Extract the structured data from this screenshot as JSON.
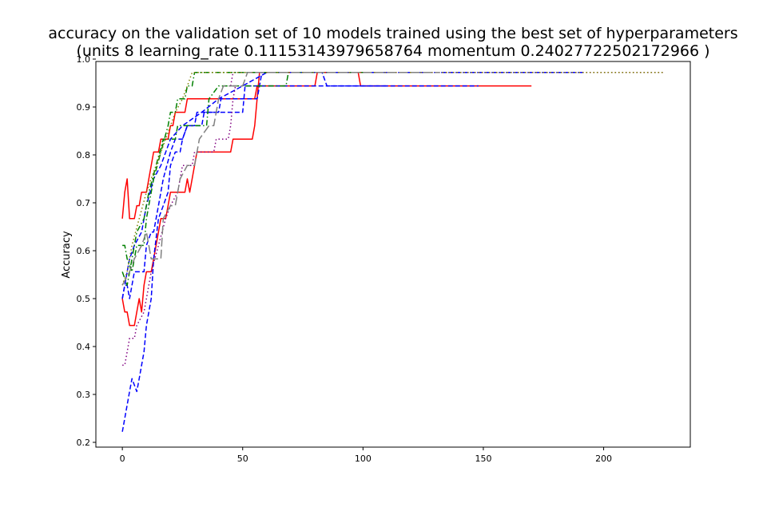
{
  "chart_data": {
    "type": "line",
    "title_lines": [
      "accuracy on the validation set of 10 models trained using the best set of hyperparameters",
      "(units 8 learning_rate 0.11153143979658764 momentum 0.24027722502172966 )"
    ],
    "xlabel": "",
    "ylabel": "Accuracy",
    "xlim": [
      -11,
      236
    ],
    "ylim": [
      0.19,
      0.995
    ],
    "xticks": [
      0,
      50,
      100,
      150,
      200
    ],
    "yticks": [
      0.2,
      0.3,
      0.4,
      0.5,
      0.6,
      0.7,
      0.8,
      0.9,
      1.0
    ],
    "ytick_labels": [
      "0.2",
      "0.3",
      "0.4",
      "0.5",
      "0.6",
      "0.7",
      "0.8",
      "0.9",
      "1.0"
    ],
    "grid": false,
    "series": [
      {
        "color": "#ff0000",
        "style": "solid",
        "points": [
          [
            0,
            0.667
          ],
          [
            1,
            0.722
          ],
          [
            2,
            0.75
          ],
          [
            3,
            0.667
          ],
          [
            5,
            0.667
          ],
          [
            6,
            0.694
          ],
          [
            7,
            0.694
          ],
          [
            8,
            0.722
          ],
          [
            10,
            0.722
          ],
          [
            11,
            0.75
          ],
          [
            13,
            0.806
          ],
          [
            15,
            0.806
          ],
          [
            16,
            0.833
          ],
          [
            19,
            0.833
          ],
          [
            20,
            0.861
          ],
          [
            21,
            0.861
          ],
          [
            22,
            0.889
          ],
          [
            23,
            0.889
          ],
          [
            26,
            0.889
          ],
          [
            27,
            0.917
          ],
          [
            55,
            0.917
          ],
          [
            56,
            0.944
          ],
          [
            80,
            0.944
          ],
          [
            81,
            0.972
          ],
          [
            98,
            0.972
          ],
          [
            99,
            0.944
          ],
          [
            170,
            0.944
          ]
        ]
      },
      {
        "color": "#ff0000",
        "style": "solid",
        "points": [
          [
            0,
            0.5
          ],
          [
            1,
            0.472
          ],
          [
            2,
            0.472
          ],
          [
            3,
            0.444
          ],
          [
            5,
            0.444
          ],
          [
            6,
            0.472
          ],
          [
            7,
            0.5
          ],
          [
            8,
            0.472
          ],
          [
            9,
            0.528
          ],
          [
            10,
            0.556
          ],
          [
            12,
            0.556
          ],
          [
            13,
            0.583
          ],
          [
            15,
            0.639
          ],
          [
            16,
            0.667
          ],
          [
            18,
            0.667
          ],
          [
            19,
            0.694
          ],
          [
            20,
            0.722
          ],
          [
            26,
            0.722
          ],
          [
            27,
            0.75
          ],
          [
            28,
            0.722
          ],
          [
            29,
            0.75
          ],
          [
            30,
            0.778
          ],
          [
            31,
            0.806
          ],
          [
            45,
            0.806
          ],
          [
            46,
            0.833
          ],
          [
            54,
            0.833
          ],
          [
            55,
            0.861
          ],
          [
            56,
            0.917
          ],
          [
            57,
            0.972
          ],
          [
            100,
            0.972
          ]
        ]
      },
      {
        "color": "#0000ff",
        "style": "dashed",
        "points": [
          [
            0,
            0.222
          ],
          [
            2,
            0.278
          ],
          [
            3,
            0.306
          ],
          [
            4,
            0.333
          ],
          [
            6,
            0.306
          ],
          [
            7,
            0.333
          ],
          [
            9,
            0.389
          ],
          [
            10,
            0.444
          ],
          [
            12,
            0.5
          ],
          [
            13,
            0.583
          ],
          [
            15,
            0.667
          ],
          [
            17,
            0.694
          ],
          [
            19,
            0.722
          ],
          [
            20,
            0.778
          ],
          [
            22,
            0.806
          ],
          [
            24,
            0.806
          ],
          [
            25,
            0.833
          ],
          [
            27,
            0.861
          ],
          [
            33,
            0.861
          ],
          [
            34,
            0.889
          ],
          [
            50,
            0.889
          ],
          [
            51,
            0.944
          ],
          [
            85,
            0.944
          ],
          [
            86,
            0.944
          ],
          [
            148,
            0.944
          ]
        ]
      },
      {
        "color": "#0000ff",
        "style": "dashed",
        "points": [
          [
            0,
            0.5
          ],
          [
            1,
            0.528
          ],
          [
            2,
            0.528
          ],
          [
            3,
            0.5
          ],
          [
            4,
            0.528
          ],
          [
            5,
            0.556
          ],
          [
            9,
            0.556
          ],
          [
            10,
            0.611
          ],
          [
            12,
            0.639
          ],
          [
            13,
            0.639
          ],
          [
            15,
            0.694
          ],
          [
            17,
            0.75
          ],
          [
            20,
            0.806
          ],
          [
            22,
            0.833
          ],
          [
            25,
            0.833
          ],
          [
            27,
            0.861
          ],
          [
            30,
            0.861
          ],
          [
            31,
            0.889
          ],
          [
            40,
            0.889
          ],
          [
            41,
            0.917
          ],
          [
            56,
            0.917
          ],
          [
            57,
            0.944
          ],
          [
            58,
            0.972
          ],
          [
            80,
            0.972
          ],
          [
            83,
            0.972
          ],
          [
            85,
            0.944
          ],
          [
            110,
            0.944
          ]
        ]
      },
      {
        "color": "#0000ff",
        "style": "dashed",
        "points": [
          [
            0,
            0.5
          ],
          [
            2,
            0.556
          ],
          [
            3,
            0.583
          ],
          [
            5,
            0.611
          ],
          [
            8,
            0.639
          ],
          [
            10,
            0.694
          ],
          [
            13,
            0.75
          ],
          [
            16,
            0.778
          ],
          [
            20,
            0.833
          ],
          [
            25,
            0.861
          ],
          [
            33,
            0.889
          ],
          [
            40,
            0.917
          ],
          [
            50,
            0.944
          ],
          [
            60,
            0.972
          ],
          [
            192,
            0.972
          ]
        ]
      },
      {
        "color": "#008000",
        "style": "dashdot",
        "points": [
          [
            0,
            0.611
          ],
          [
            1,
            0.611
          ],
          [
            2,
            0.583
          ],
          [
            4,
            0.556
          ],
          [
            6,
            0.611
          ],
          [
            9,
            0.611
          ],
          [
            10,
            0.667
          ],
          [
            13,
            0.75
          ],
          [
            16,
            0.806
          ],
          [
            19,
            0.861
          ],
          [
            20,
            0.889
          ],
          [
            22,
            0.889
          ],
          [
            23,
            0.917
          ],
          [
            26,
            0.917
          ],
          [
            27,
            0.944
          ],
          [
            29,
            0.944
          ],
          [
            30,
            0.972
          ],
          [
            69,
            0.972
          ]
        ]
      },
      {
        "color": "#008000",
        "style": "dashdot",
        "points": [
          [
            0,
            0.556
          ],
          [
            2,
            0.528
          ],
          [
            4,
            0.583
          ],
          [
            6,
            0.639
          ],
          [
            9,
            0.667
          ],
          [
            11,
            0.722
          ],
          [
            14,
            0.778
          ],
          [
            17,
            0.833
          ],
          [
            22,
            0.833
          ],
          [
            23,
            0.861
          ],
          [
            35,
            0.861
          ],
          [
            36,
            0.917
          ],
          [
            40,
            0.944
          ],
          [
            60,
            0.944
          ],
          [
            68,
            0.944
          ],
          [
            69,
            0.972
          ],
          [
            100,
            0.972
          ]
        ]
      },
      {
        "color": "#800080",
        "style": "dotted",
        "points": [
          [
            0,
            0.361
          ],
          [
            1,
            0.361
          ],
          [
            2,
            0.389
          ],
          [
            3,
            0.417
          ],
          [
            5,
            0.417
          ],
          [
            6,
            0.444
          ],
          [
            9,
            0.472
          ],
          [
            10,
            0.5
          ],
          [
            11,
            0.528
          ],
          [
            12,
            0.556
          ],
          [
            15,
            0.611
          ],
          [
            18,
            0.667
          ],
          [
            20,
            0.694
          ],
          [
            23,
            0.722
          ],
          [
            24,
            0.75
          ],
          [
            25,
            0.778
          ],
          [
            29,
            0.778
          ],
          [
            30,
            0.806
          ],
          [
            38,
            0.806
          ],
          [
            39,
            0.833
          ],
          [
            44,
            0.833
          ],
          [
            45,
            0.861
          ],
          [
            46,
            0.917
          ],
          [
            47,
            0.944
          ],
          [
            45,
            0.944
          ],
          [
            46,
            0.972
          ],
          [
            225,
            0.972
          ]
        ]
      },
      {
        "color": "#808000",
        "style": "dotted",
        "points": [
          [
            0,
            0.528
          ],
          [
            2,
            0.556
          ],
          [
            4,
            0.611
          ],
          [
            7,
            0.667
          ],
          [
            10,
            0.722
          ],
          [
            14,
            0.778
          ],
          [
            18,
            0.833
          ],
          [
            22,
            0.889
          ],
          [
            25,
            0.917
          ],
          [
            27,
            0.944
          ],
          [
            29,
            0.972
          ],
          [
            225,
            0.972
          ]
        ]
      },
      {
        "color": "#808080",
        "style": "longdash",
        "points": [
          [
            0,
            0.528
          ],
          [
            3,
            0.556
          ],
          [
            5,
            0.583
          ],
          [
            8,
            0.611
          ],
          [
            10,
            0.639
          ],
          [
            12,
            0.583
          ],
          [
            16,
            0.583
          ],
          [
            17,
            0.667
          ],
          [
            20,
            0.694
          ],
          [
            22,
            0.694
          ],
          [
            24,
            0.75
          ],
          [
            27,
            0.778
          ],
          [
            30,
            0.778
          ],
          [
            32,
            0.833
          ],
          [
            36,
            0.861
          ],
          [
            38,
            0.861
          ],
          [
            40,
            0.917
          ],
          [
            42,
            0.944
          ],
          [
            50,
            0.944
          ],
          [
            52,
            0.972
          ],
          [
            132,
            0.972
          ]
        ]
      }
    ]
  }
}
